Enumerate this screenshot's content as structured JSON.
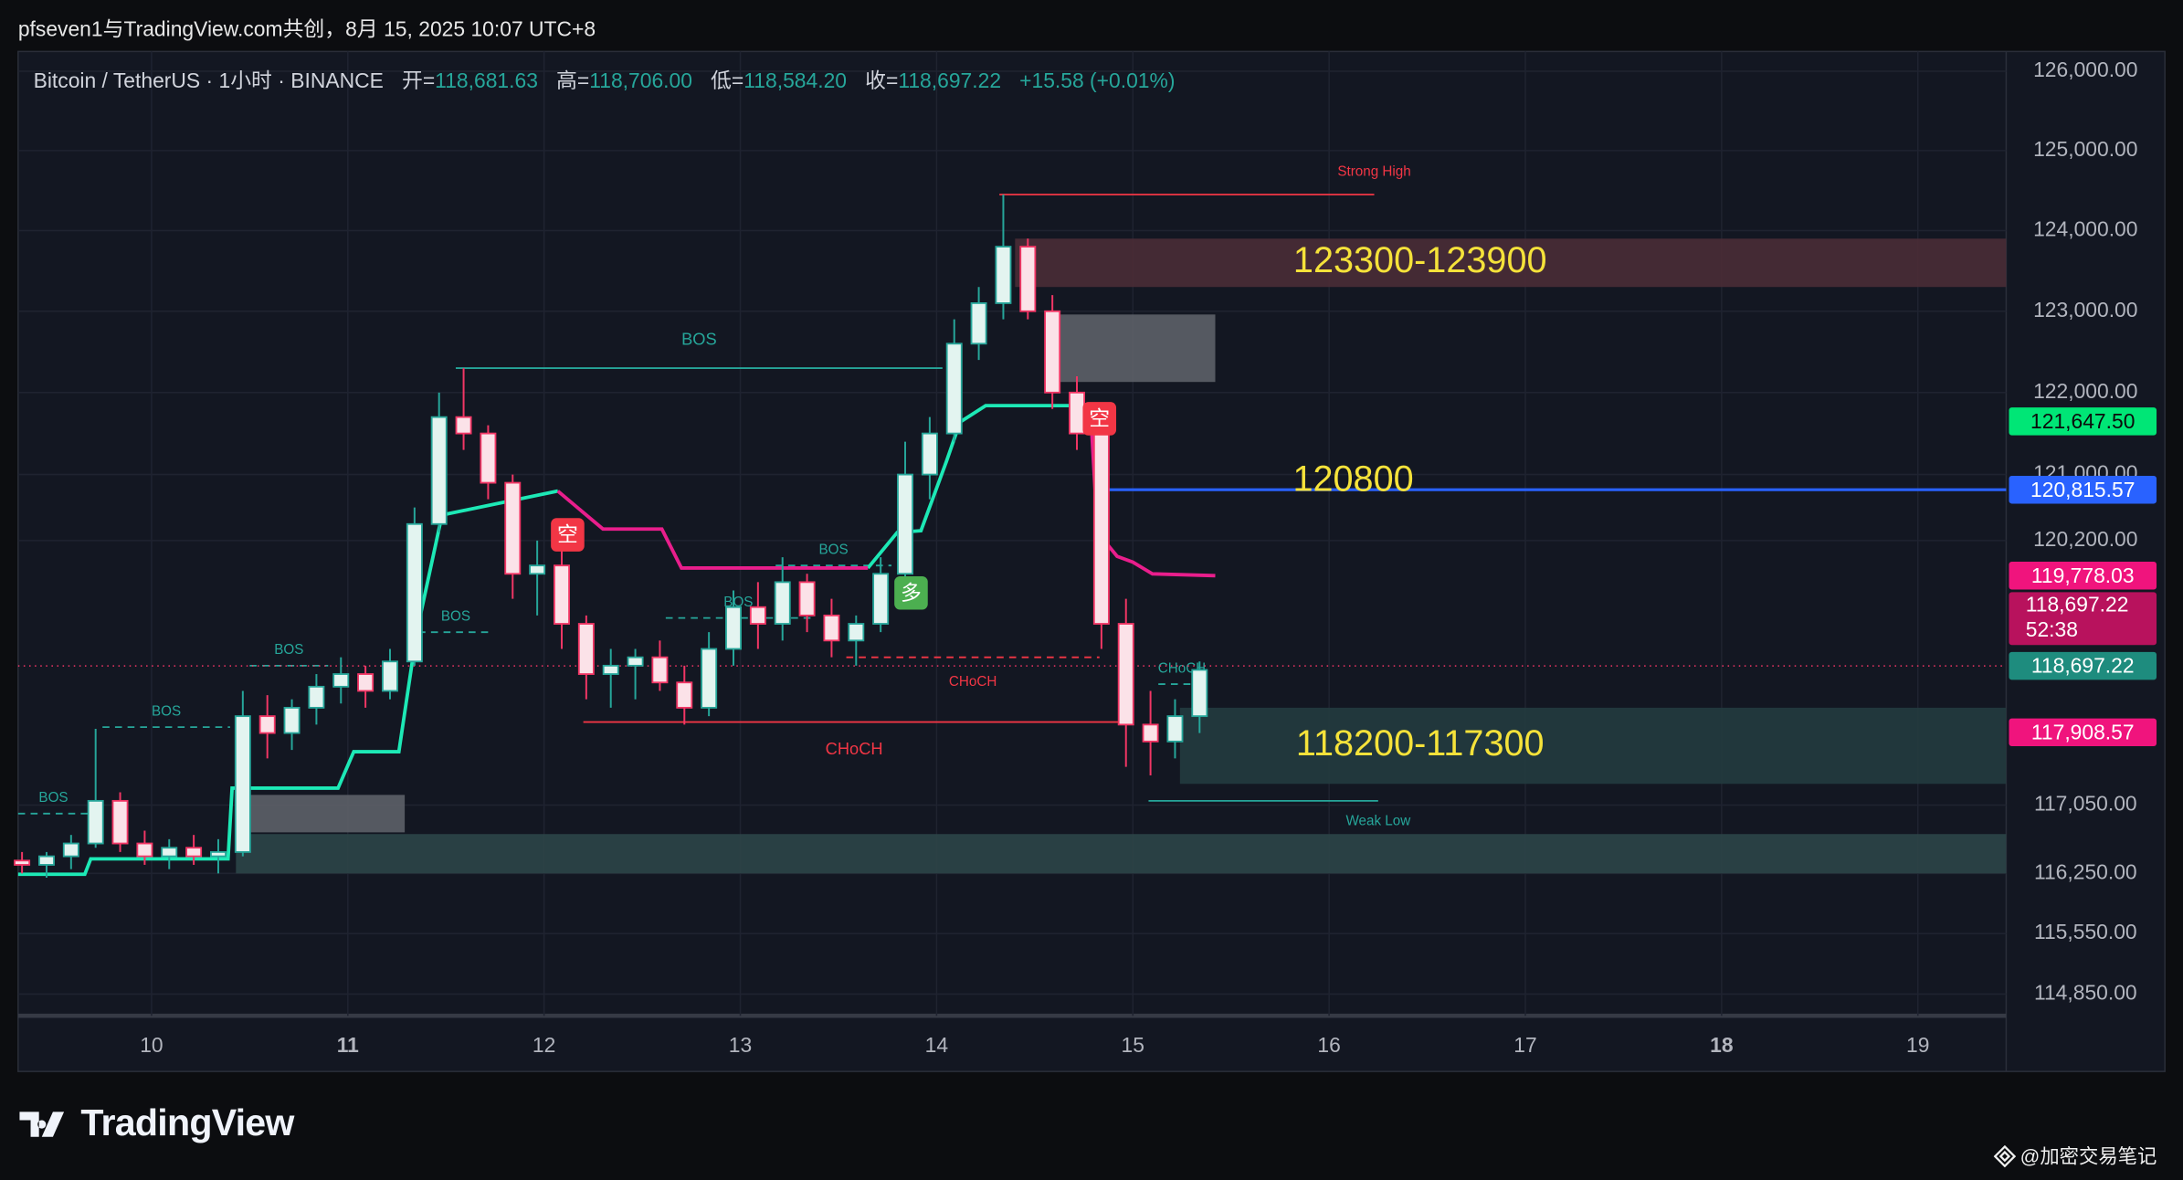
{
  "header": {
    "attribution": "pfseven1与TradingView.com共创，8月 15, 2025 10:07 UTC+8",
    "symbol": "Bitcoin / TetherUS · 1小时 · BINANCE",
    "ohlc": [
      {
        "key": "开=",
        "value": "118,681.63"
      },
      {
        "key": "高=",
        "value": "118,706.00"
      },
      {
        "key": "低=",
        "value": "118,584.20"
      },
      {
        "key": "收=",
        "value": "118,697.22"
      }
    ],
    "change": "+15.58 (+0.01%)"
  },
  "footer": {
    "brand": "TradingView",
    "watermark": "@加密交易笔记"
  },
  "chart_data": {
    "type": "candlestick",
    "log_scale": true,
    "grid": true,
    "xlim": [
      9.32,
      19.45
    ],
    "xticks": [
      10,
      11,
      12,
      13,
      14,
      15,
      16,
      17,
      18,
      19
    ],
    "xticks_bold": [
      11,
      18
    ],
    "ylim": [
      114600,
      126250
    ],
    "yticks": [
      {
        "value": 126000,
        "label": "126,000.00"
      },
      {
        "value": 125000,
        "label": "125,000.00"
      },
      {
        "value": 124000,
        "label": "124,000.00"
      },
      {
        "value": 123000,
        "label": "123,000.00"
      },
      {
        "value": 122000,
        "label": "122,000.00"
      },
      {
        "value": 121000,
        "label": "121,000.00"
      },
      {
        "value": 120200,
        "label": "120,200.00"
      },
      {
        "value": 117050,
        "label": "117,050.00"
      },
      {
        "value": 116250,
        "label": "116,250.00"
      },
      {
        "value": 115550,
        "label": "115,550.00"
      },
      {
        "value": 114850,
        "label": "114,850.00"
      }
    ],
    "up_color": "#26a69a",
    "down_color": "#f23665",
    "candles": {
      "x": [
        9.34,
        9.465,
        9.59,
        9.715,
        9.84,
        9.965,
        10.09,
        10.215,
        10.34,
        10.465,
        10.59,
        10.715,
        10.84,
        10.965,
        11.09,
        11.215,
        11.34,
        11.465,
        11.59,
        11.715,
        11.84,
        11.965,
        12.09,
        12.215,
        12.34,
        12.465,
        12.59,
        12.715,
        12.84,
        12.965,
        13.09,
        13.215,
        13.34,
        13.465,
        13.59,
        13.715,
        13.84,
        13.965,
        14.09,
        14.215,
        14.34,
        14.465,
        14.59,
        14.715,
        14.84,
        14.965,
        15.09,
        15.215,
        15.34
      ],
      "open": [
        116400,
        116350,
        116450,
        116600,
        117100,
        116600,
        116450,
        116550,
        116450,
        116500,
        118100,
        117900,
        118200,
        118450,
        118600,
        118400,
        118750,
        120400,
        121700,
        121500,
        120900,
        119800,
        119900,
        119200,
        118600,
        118700,
        118800,
        118500,
        118200,
        118900,
        119400,
        119200,
        119700,
        119300,
        119000,
        119200,
        119800,
        121000,
        121500,
        122600,
        123100,
        123800,
        123000,
        122000,
        121500,
        119200,
        118000,
        117800,
        118100
      ],
      "high": [
        116500,
        116500,
        116700,
        117950,
        117200,
        116750,
        116650,
        116700,
        116650,
        118400,
        118350,
        118300,
        118600,
        118800,
        118700,
        118900,
        120600,
        122000,
        122300,
        121600,
        121000,
        120200,
        120100,
        119300,
        118900,
        118900,
        119000,
        118700,
        119100,
        119600,
        119700,
        120000,
        119800,
        119500,
        119300,
        120000,
        121400,
        121700,
        122900,
        123300,
        124450,
        123900,
        123200,
        122200,
        121600,
        119500,
        118400,
        118300,
        118750
      ],
      "low": [
        116250,
        116200,
        116300,
        116550,
        116500,
        116350,
        116300,
        116350,
        116250,
        116450,
        117600,
        117700,
        118000,
        118250,
        118200,
        118300,
        118700,
        120300,
        121300,
        120700,
        119500,
        119300,
        118900,
        118300,
        118200,
        118300,
        118400,
        118000,
        118100,
        118700,
        118900,
        119000,
        119100,
        118800,
        118700,
        119100,
        119700,
        120700,
        121400,
        122400,
        122900,
        122900,
        121800,
        121300,
        118900,
        117500,
        117400,
        117600,
        117900
      ],
      "close": [
        116350,
        116450,
        116600,
        117100,
        116600,
        116450,
        116550,
        116450,
        116500,
        118100,
        117900,
        118200,
        118450,
        118600,
        118400,
        118750,
        120400,
        121700,
        121500,
        120900,
        119800,
        119900,
        119200,
        118600,
        118700,
        118800,
        118500,
        118200,
        118900,
        119400,
        119200,
        119700,
        119300,
        119000,
        119200,
        119800,
        121000,
        121500,
        122600,
        123100,
        123800,
        123000,
        122000,
        121500,
        119200,
        118000,
        117800,
        118100,
        118650
      ]
    },
    "series": [
      {
        "color": "#1de9b6",
        "x": [
          9.32,
          9.66,
          9.69,
          10.39,
          10.41,
          10.95,
          11.03,
          11.26,
          11.35,
          11.48,
          12.07,
          12.08,
          13.65,
          13.8,
          13.92,
          14.05,
          14.12,
          14.25,
          14.78
        ],
        "values": [
          116240,
          116240,
          116420,
          116420,
          117250,
          117250,
          117680,
          117680,
          119090,
          120510,
          120800,
          null,
          119870,
          120300,
          120320,
          121160,
          121640,
          121840,
          121840
        ]
      },
      {
        "color": "#e91e8c",
        "x": [
          12.07,
          12.3,
          12.6,
          12.7,
          13.65,
          13.66,
          14.79,
          14.82,
          14.92,
          15.0,
          15.1,
          15.42
        ],
        "values": [
          120800,
          120340,
          120340,
          119870,
          119870,
          null,
          121550,
          120300,
          120010,
          119940,
          119800,
          119778.03
        ]
      }
    ],
    "zones": [
      {
        "x": [
          14.4,
          19.45
        ],
        "y": [
          123300,
          123900
        ],
        "color": "#4a2c36",
        "label": "123300-123900"
      },
      {
        "x": [
          14.55,
          15.42
        ],
        "y": [
          122130,
          122960
        ],
        "color": "#5d6068"
      },
      {
        "x": [
          15.24,
          19.45
        ],
        "y": [
          117300,
          118200
        ],
        "color": "#243b3f",
        "label": "118200-117300"
      },
      {
        "x": [
          10.43,
          11.29
        ],
        "y": [
          116730,
          117170
        ],
        "color": "#5d6068"
      },
      {
        "x": [
          10.43,
          19.45
        ],
        "y": [
          116250,
          116710
        ],
        "color": "#2c4548"
      }
    ],
    "structures": [
      {
        "label": "Strong High",
        "price": 124450,
        "x": [
          14.32,
          16.23
        ],
        "color": "#f23645",
        "dash": false,
        "label_pos": "above-end"
      },
      {
        "label": "BOS",
        "price": 122300,
        "x": [
          11.55,
          14.03
        ],
        "color": "#26a69a",
        "dash": false,
        "label_pos": "above"
      },
      {
        "label": "BOS",
        "price": 119900,
        "x": [
          13.18,
          13.77
        ],
        "color": "#26a69a",
        "dash": true,
        "label_pos": "above"
      },
      {
        "label": "BOS",
        "price": 119270,
        "x": [
          12.62,
          13.36
        ],
        "color": "#26a69a",
        "dash": true,
        "label_pos": "above"
      },
      {
        "label": "BOS",
        "price": 119100,
        "x": [
          11.36,
          11.74
        ],
        "color": "#26a69a",
        "dash": true,
        "label_pos": "above"
      },
      {
        "label": "BOS",
        "price": 118700,
        "x": [
          10.5,
          10.9
        ],
        "color": "#26a69a",
        "dash": true,
        "label_pos": "above"
      },
      {
        "label": "BOS",
        "price": 117970,
        "x": [
          9.75,
          10.4
        ],
        "color": "#26a69a",
        "dash": true,
        "label_pos": "above"
      },
      {
        "label": "BOS",
        "price": 116950,
        "x": [
          9.32,
          9.68
        ],
        "color": "#26a69a",
        "dash": true,
        "label_pos": "above"
      },
      {
        "label": "CHoCH",
        "price": 118030,
        "x": [
          12.2,
          14.96
        ],
        "color": "#f23645",
        "dash": false,
        "label_pos": "below"
      },
      {
        "label": "CHoCH",
        "price": 118800,
        "x": [
          13.54,
          14.83
        ],
        "color": "#f23645",
        "dash": true,
        "label_pos": "below"
      },
      {
        "label": "CHoCH",
        "price": 118480,
        "x": [
          15.13,
          15.37
        ],
        "color": "#26a69a",
        "dash": true,
        "label_pos": "above"
      },
      {
        "label": "Weak Low",
        "price": 117100,
        "x": [
          15.08,
          16.25
        ],
        "color": "#26a69a",
        "dash": false,
        "label_pos": "below-end"
      }
    ],
    "levels": [
      {
        "value": 120815.57,
        "x0": 14.83,
        "color": "#2962ff",
        "dash": false,
        "label": "120800"
      },
      {
        "value": 118697.22,
        "x0": 9.32,
        "color": "#f23665",
        "dash": true
      }
    ],
    "signals": [
      {
        "x": 12.12,
        "price": 120270,
        "label": "空",
        "color": "#f23645"
      },
      {
        "x": 14.83,
        "price": 121680,
        "label": "空",
        "color": "#f23645"
      },
      {
        "x": 13.87,
        "price": 119570,
        "label": "多",
        "color": "#4caf50"
      }
    ],
    "tags": [
      {
        "value": 121647.5,
        "label": "121,647.50",
        "color": "#00e676",
        "text": "#0b0b0b"
      },
      {
        "value": 120815.57,
        "label": "120,815.57",
        "color": "#2962ff",
        "text": "#ffffff"
      },
      {
        "value": 119778.03,
        "label": "119,778.03",
        "color": "#f0147d",
        "text": "#ffffff"
      },
      {
        "value": 118697.22,
        "label": "118,697.22",
        "countdown": "52:38",
        "color": "#b8125d",
        "text": "#ffffff"
      },
      {
        "value": 118697.22,
        "label": "118,697.22",
        "color": "#1e8c7e",
        "text": "#ffffff"
      },
      {
        "value": 117908.57,
        "label": "117,908.57",
        "color": "#f0147d",
        "text": "#ffffff"
      }
    ]
  }
}
